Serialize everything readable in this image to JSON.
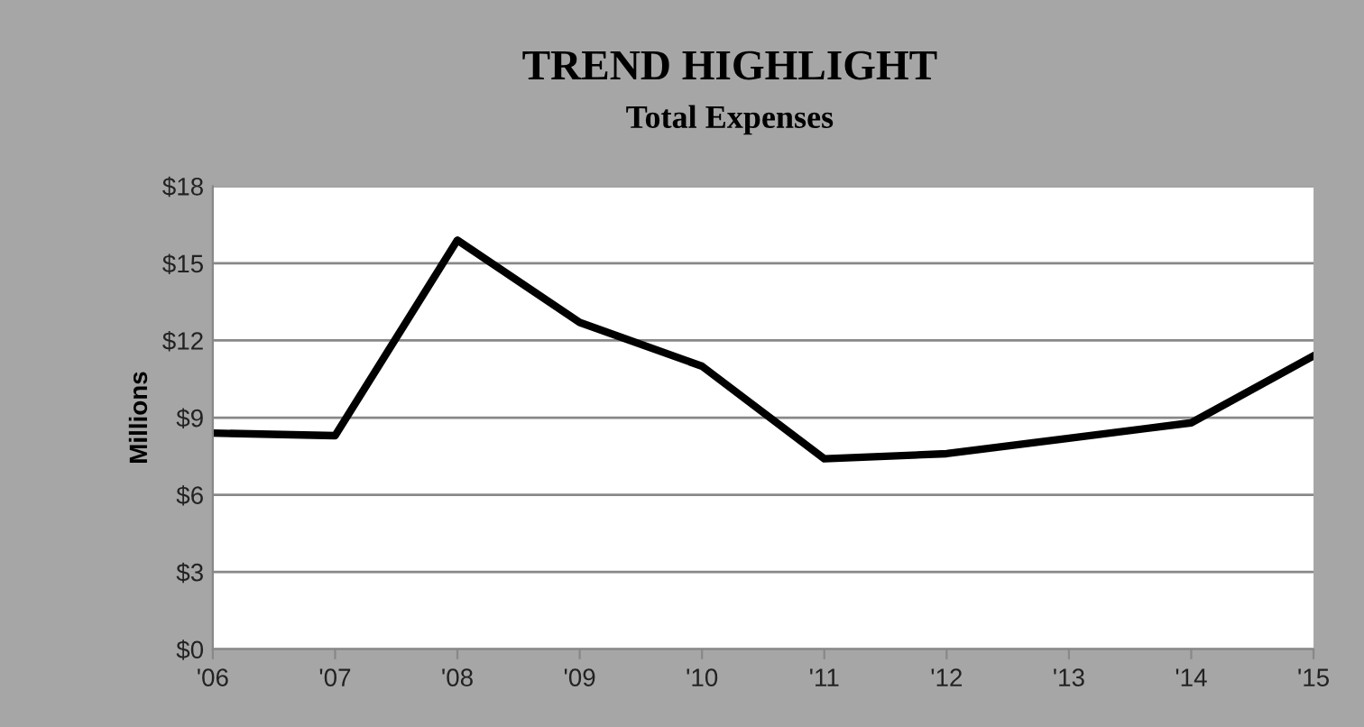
{
  "chart_data": {
    "type": "line",
    "title": "TREND HIGHLIGHT",
    "subtitle": "Total Expenses",
    "ylabel": "Millions",
    "categories": [
      "'06",
      "'07",
      "'08",
      "'09",
      "'10",
      "'11",
      "'12",
      "'13",
      "'14",
      "'15"
    ],
    "series": [
      {
        "color": "#000000",
        "values": [
          8.4,
          8.3,
          15.9,
          12.7,
          11.0,
          7.4,
          7.6,
          8.2,
          8.8,
          11.4
        ]
      }
    ],
    "ylim": [
      0,
      18
    ],
    "yticks": [
      {
        "value": 0,
        "label": "$0"
      },
      {
        "value": 3,
        "label": "$3"
      },
      {
        "value": 6,
        "label": "$6"
      },
      {
        "value": 9,
        "label": "$9"
      },
      {
        "value": 12,
        "label": "$12"
      },
      {
        "value": 15,
        "label": "$15"
      },
      {
        "value": 18,
        "label": "$18"
      }
    ],
    "grid": "y",
    "marker": "none",
    "line_style": "solid"
  }
}
